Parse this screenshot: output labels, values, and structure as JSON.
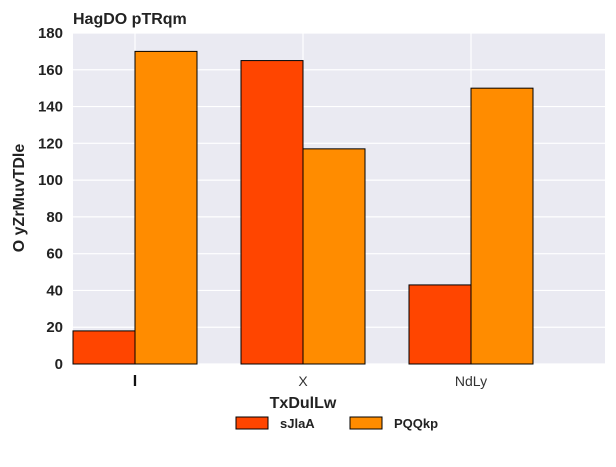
{
  "chart_data": {
    "type": "bar",
    "title": "HagDO pTRqm",
    "xlabel": "TxDulLw",
    "ylabel": "O yZrMuvTDle",
    "categories": [
      "I",
      "X",
      "NdLy"
    ],
    "series": [
      {
        "name": "sJlaA",
        "values": [
          18,
          165,
          43
        ],
        "color": "#ff4500"
      },
      {
        "name": "PQQkp",
        "values": [
          170,
          117,
          150
        ],
        "color": "#ff8c00"
      }
    ],
    "ylim": [
      0,
      180
    ],
    "yticks": [
      0,
      20,
      40,
      60,
      80,
      100,
      120,
      140,
      160,
      180
    ],
    "grid": true,
    "legend_placement": "bottom-center",
    "colors": {
      "plot_background": "#eaeaf2",
      "grid": "#ffffff",
      "bar_edge": "#000000"
    }
  }
}
